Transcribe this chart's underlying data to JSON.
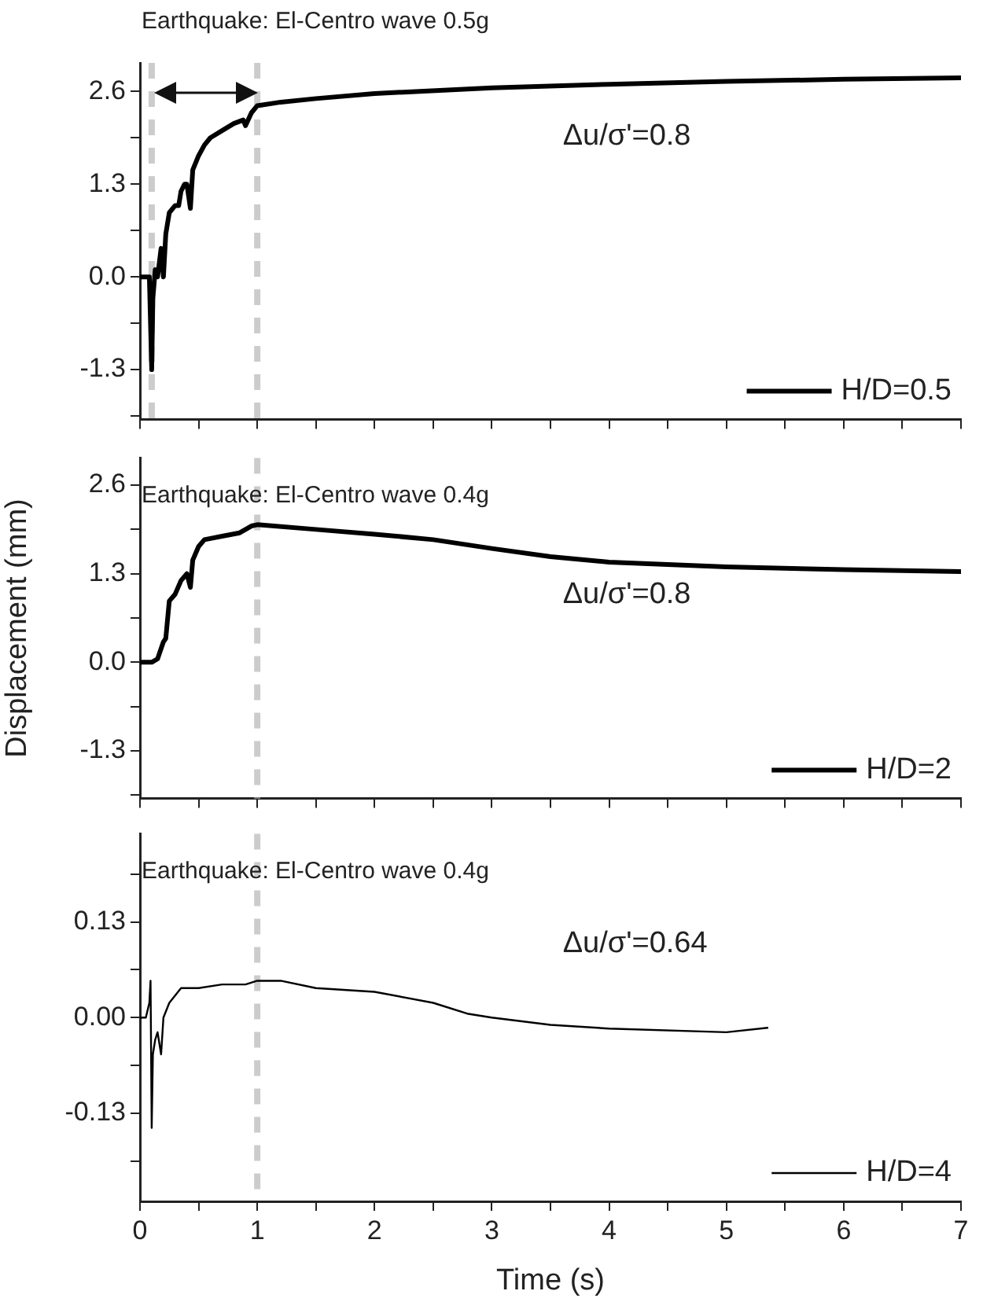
{
  "chart_data": [
    {
      "type": "line",
      "annotations": [
        "Earthquake: El-Centro wave 0.5g",
        "Δu/σ'=0.8"
      ],
      "legend": "bottom right",
      "xlim": [
        0,
        7
      ],
      "xticks": [
        0,
        {
          "value": 0.5,
          "label": null
        },
        1,
        {
          "value": 1.5,
          "label": null
        },
        2,
        {
          "value": 2.5,
          "label": null
        },
        3,
        {
          "value": 3.5,
          "label": null
        },
        4,
        {
          "value": 4.5,
          "label": null
        },
        5,
        {
          "value": 5.5,
          "label": null
        },
        6,
        {
          "value": 6.5,
          "label": null
        },
        7
      ],
      "ylim": [
        -2,
        3
      ],
      "yticks": [
        {
          "value": -1.95,
          "label": null
        },
        -1.3,
        {
          "value": -0.65,
          "label": null
        },
        {
          "value": 0,
          "label": "0.0"
        },
        {
          "value": 0.65,
          "label": null
        },
        1.3,
        {
          "value": 1.95,
          "label": null
        },
        2.6
      ],
      "tick_labels": "y",
      "ref_lines": [
        {
          "axis": "x",
          "value": 0.1,
          "color": "#cccccc",
          "line_style": "dashed"
        },
        {
          "axis": "x",
          "value": 1,
          "color": "#cccccc",
          "line_style": "dashed"
        }
      ],
      "series": [
        {
          "name": "H/D=0.5",
          "color": "#000000",
          "x": [
            0,
            0.05,
            0.08,
            0.1,
            0.11,
            0.13,
            0.15,
            0.18,
            0.2,
            0.22,
            0.25,
            0.3,
            0.33,
            0.35,
            0.38,
            0.4,
            0.43,
            0.45,
            0.5,
            0.55,
            0.6,
            0.7,
            0.8,
            0.88,
            0.9,
            0.95,
            1.0,
            1.2,
            1.5,
            2,
            3,
            4,
            5,
            6,
            7
          ],
          "values": [
            0,
            0,
            0,
            -1.3,
            -0.3,
            0.1,
            0,
            0.4,
            0,
            0.6,
            0.9,
            1.0,
            1.0,
            1.2,
            1.3,
            1.3,
            0.96,
            1.5,
            1.7,
            1.85,
            1.95,
            2.05,
            2.15,
            2.2,
            2.12,
            2.3,
            2.4,
            2.45,
            2.5,
            2.57,
            2.65,
            2.7,
            2.74,
            2.77,
            2.79
          ]
        }
      ]
    },
    {
      "type": "line",
      "annotations": [
        "Earthquake: El-Centro wave 0.4g",
        "Δu/σ'=0.8"
      ],
      "legend": "bottom right",
      "ylabel": "Displacement (mm)",
      "xlim": [
        0,
        7
      ],
      "xticks": [
        0,
        {
          "value": 0.5,
          "label": null
        },
        1,
        {
          "value": 1.5,
          "label": null
        },
        2,
        {
          "value": 2.5,
          "label": null
        },
        3,
        {
          "value": 3.5,
          "label": null
        },
        4,
        {
          "value": 4.5,
          "label": null
        },
        5,
        {
          "value": 5.5,
          "label": null
        },
        6,
        {
          "value": 6.5,
          "label": null
        },
        7
      ],
      "ylim": [
        -2,
        3
      ],
      "yticks": [
        {
          "value": -1.95,
          "label": null
        },
        -1.3,
        {
          "value": -0.65,
          "label": null
        },
        {
          "value": 0,
          "label": "0.0"
        },
        {
          "value": 0.65,
          "label": null
        },
        1.3,
        {
          "value": 1.95,
          "label": null
        },
        2.6
      ],
      "tick_labels": "y",
      "ref_lines": [
        {
          "axis": "x",
          "value": 1,
          "color": "#cccccc",
          "line_style": "dashed"
        }
      ],
      "series": [
        {
          "name": "H/D=2",
          "color": "#000000",
          "x": [
            0,
            0.1,
            0.15,
            0.2,
            0.22,
            0.25,
            0.3,
            0.35,
            0.4,
            0.43,
            0.45,
            0.5,
            0.55,
            0.7,
            0.85,
            0.95,
            1.0,
            1.5,
            2,
            2.5,
            3,
            3.5,
            4,
            5,
            6,
            7
          ],
          "values": [
            0,
            0,
            0.05,
            0.3,
            0.35,
            0.9,
            1.0,
            1.2,
            1.3,
            1.1,
            1.5,
            1.7,
            1.8,
            1.85,
            1.9,
            2.0,
            2.02,
            1.95,
            1.88,
            1.8,
            1.67,
            1.55,
            1.47,
            1.4,
            1.36,
            1.33
          ]
        }
      ]
    },
    {
      "type": "line",
      "annotations": [
        "Earthquake: El-Centro wave 0.4g",
        "Δu/σ'=0.64"
      ],
      "legend": "bottom right",
      "xlabel": "Time (s)",
      "xlim": [
        0,
        7
      ],
      "xticks": [
        0,
        {
          "value": 0.5,
          "label": null
        },
        1,
        {
          "value": 1.5,
          "label": null
        },
        2,
        {
          "value": 2.5,
          "label": null
        },
        3,
        {
          "value": 3.5,
          "label": null
        },
        4,
        {
          "value": 4.5,
          "label": null
        },
        5,
        {
          "value": 5.5,
          "label": null
        },
        6,
        {
          "value": 6.5,
          "label": null
        },
        7
      ],
      "ylim": [
        -0.25,
        0.25
      ],
      "yticks": [
        {
          "value": -0.195,
          "label": null
        },
        -0.13,
        {
          "value": -0.065,
          "label": null
        },
        {
          "value": 0,
          "label": "0.00"
        },
        {
          "value": 0.065,
          "label": null
        },
        0.13,
        {
          "value": 0.195,
          "label": null
        }
      ],
      "ref_lines": [
        {
          "axis": "x",
          "value": 1,
          "color": "#cccccc",
          "line_style": "dashed"
        }
      ],
      "series": [
        {
          "name": "H/D=4",
          "color": "#000000",
          "x": [
            0,
            0.05,
            0.08,
            0.09,
            0.1,
            0.11,
            0.13,
            0.15,
            0.18,
            0.2,
            0.25,
            0.35,
            0.5,
            0.7,
            0.9,
            1.0,
            1.2,
            1.5,
            2,
            2.5,
            2.8,
            3,
            3.5,
            4,
            5,
            5.35
          ],
          "values": [
            0,
            0,
            0.02,
            0.05,
            -0.15,
            -0.05,
            -0.03,
            -0.02,
            -0.05,
            0,
            0.02,
            0.04,
            0.04,
            0.045,
            0.045,
            0.05,
            0.05,
            0.04,
            0.035,
            0.02,
            0.005,
            0,
            -0.01,
            -0.015,
            -0.02,
            -0.014
          ]
        }
      ]
    }
  ]
}
